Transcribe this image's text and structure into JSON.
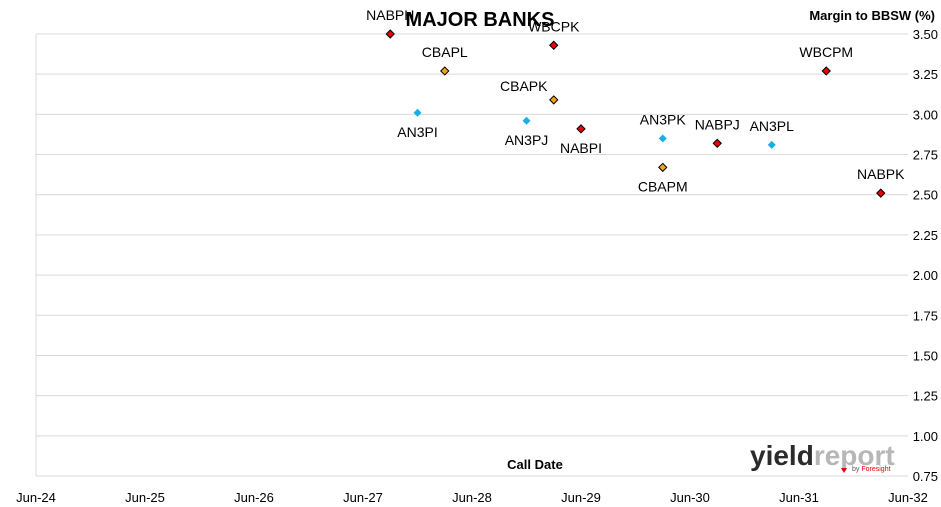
{
  "chart_data": {
    "type": "scatter",
    "title": "MAJOR BANKS",
    "xlabel": "Call Date",
    "ylabel": "Margin to BBSW (%)",
    "x_ticks": [
      "Jun-24",
      "Jun-25",
      "Jun-26",
      "Jun-27",
      "Jun-28",
      "Jun-29",
      "Jun-30",
      "Jun-31",
      "Jun-32"
    ],
    "y_ticks": [
      "0.75",
      "1.00",
      "1.25",
      "1.50",
      "1.75",
      "2.00",
      "2.25",
      "2.50",
      "2.75",
      "3.00",
      "3.25",
      "3.50"
    ],
    "ylim": [
      0.75,
      3.5
    ],
    "xlim": [
      "2024-06",
      "2032-06"
    ],
    "grid": "horizontal",
    "points": [
      {
        "label": "NABPH",
        "x": "2027-09",
        "y": 3.5,
        "color": "#e8000b",
        "label_pos": "above"
      },
      {
        "label": "CBAPL",
        "x": "2028-03",
        "y": 3.27,
        "color": "#f4a31a",
        "label_pos": "above"
      },
      {
        "label": "AN3PI",
        "x": "2027-12",
        "y": 3.01,
        "color": "#1aaee6",
        "label_pos": "below"
      },
      {
        "label": "WBCPK",
        "x": "2029-03",
        "y": 3.43,
        "color": "#e8000b",
        "label_pos": "above"
      },
      {
        "label": "CBAPK",
        "x": "2029-03",
        "y": 3.09,
        "color": "#f4a31a",
        "label_pos": "above-left"
      },
      {
        "label": "AN3PJ",
        "x": "2028-12",
        "y": 2.96,
        "color": "#1aaee6",
        "label_pos": "below"
      },
      {
        "label": "NABPI",
        "x": "2029-06",
        "y": 2.91,
        "color": "#e8000b",
        "label_pos": "below"
      },
      {
        "label": "AN3PK",
        "x": "2030-03",
        "y": 2.85,
        "color": "#1aaee6",
        "label_pos": "above"
      },
      {
        "label": "CBAPM",
        "x": "2030-03",
        "y": 2.67,
        "color": "#f4a31a",
        "label_pos": "below"
      },
      {
        "label": "NABPJ",
        "x": "2030-09",
        "y": 2.82,
        "color": "#e8000b",
        "label_pos": "above"
      },
      {
        "label": "AN3PL",
        "x": "2031-03",
        "y": 2.81,
        "color": "#1aaee6",
        "label_pos": "above"
      },
      {
        "label": "WBCPM",
        "x": "2031-09",
        "y": 3.27,
        "color": "#e8000b",
        "label_pos": "above"
      },
      {
        "label": "NABPK",
        "x": "2032-03",
        "y": 2.51,
        "color": "#e8000b",
        "label_pos": "above"
      }
    ]
  },
  "logo": {
    "text_yield": "yield",
    "text_report": "report",
    "text_by": "by",
    "text_brand": "Foresight"
  },
  "colors": {
    "red": "#e8000b",
    "orange": "#f4a31a",
    "blue": "#1aaee6",
    "grid": "#d9d9d9"
  }
}
